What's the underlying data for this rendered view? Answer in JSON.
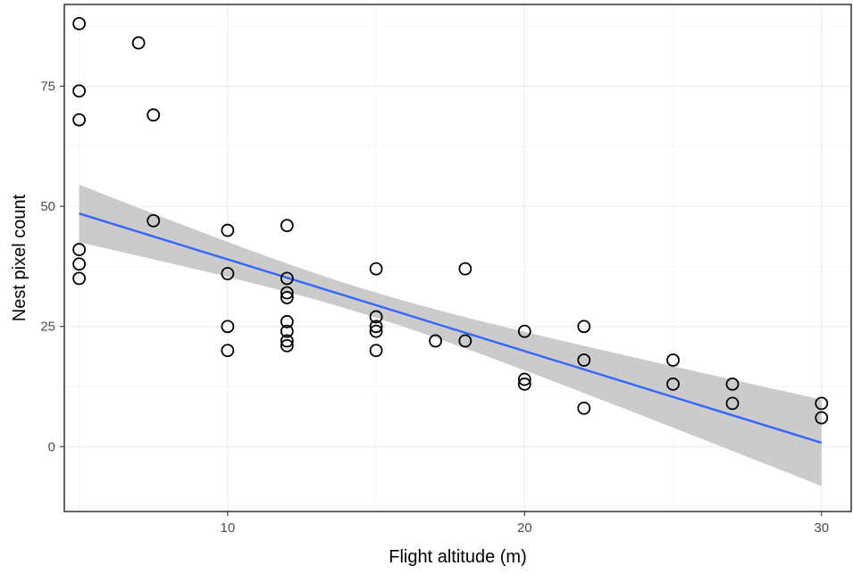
{
  "chart_data": {
    "type": "scatter",
    "xlabel": "Flight altitude (m)",
    "ylabel": "Nest pixel count",
    "x_ticks": [
      10,
      20,
      30
    ],
    "y_ticks": [
      0,
      25,
      50,
      75
    ],
    "xlim": [
      4.5,
      31
    ],
    "ylim": [
      -13.5,
      92
    ],
    "grid": true,
    "legend": "none",
    "points": [
      {
        "x": 5,
        "y": 88
      },
      {
        "x": 5,
        "y": 74
      },
      {
        "x": 5,
        "y": 68
      },
      {
        "x": 5,
        "y": 41
      },
      {
        "x": 5,
        "y": 38
      },
      {
        "x": 5,
        "y": 35
      },
      {
        "x": 7,
        "y": 84
      },
      {
        "x": 7.5,
        "y": 69
      },
      {
        "x": 7.5,
        "y": 47
      },
      {
        "x": 10,
        "y": 45
      },
      {
        "x": 10,
        "y": 36
      },
      {
        "x": 10,
        "y": 25
      },
      {
        "x": 10,
        "y": 20
      },
      {
        "x": 12,
        "y": 46
      },
      {
        "x": 12,
        "y": 35
      },
      {
        "x": 12,
        "y": 32
      },
      {
        "x": 12,
        "y": 31
      },
      {
        "x": 12,
        "y": 26
      },
      {
        "x": 12,
        "y": 24
      },
      {
        "x": 12,
        "y": 22
      },
      {
        "x": 12,
        "y": 21
      },
      {
        "x": 15,
        "y": 37
      },
      {
        "x": 15,
        "y": 27
      },
      {
        "x": 15,
        "y": 25
      },
      {
        "x": 15,
        "y": 24
      },
      {
        "x": 15,
        "y": 20
      },
      {
        "x": 17,
        "y": 22
      },
      {
        "x": 18,
        "y": 37
      },
      {
        "x": 18,
        "y": 22
      },
      {
        "x": 20,
        "y": 24
      },
      {
        "x": 20,
        "y": 14
      },
      {
        "x": 20,
        "y": 13
      },
      {
        "x": 22,
        "y": 25
      },
      {
        "x": 22,
        "y": 18
      },
      {
        "x": 22,
        "y": 8
      },
      {
        "x": 25,
        "y": 18
      },
      {
        "x": 25,
        "y": 13
      },
      {
        "x": 27,
        "y": 13
      },
      {
        "x": 27,
        "y": 9
      },
      {
        "x": 30,
        "y": 9
      },
      {
        "x": 30,
        "y": 6
      }
    ],
    "trend_line": {
      "method": "linear fit",
      "color": "#3366FF",
      "x": [
        5,
        30
      ],
      "y": [
        48.5,
        0.8
      ],
      "ci_upper": [
        54.5,
        9.8
      ],
      "ci_lower": [
        42.5,
        -8.2
      ]
    },
    "colors": {
      "points": "#000000",
      "ribbon": "#c8c8c8",
      "grid": "#ebebeb",
      "panel_border": "#333333"
    }
  }
}
